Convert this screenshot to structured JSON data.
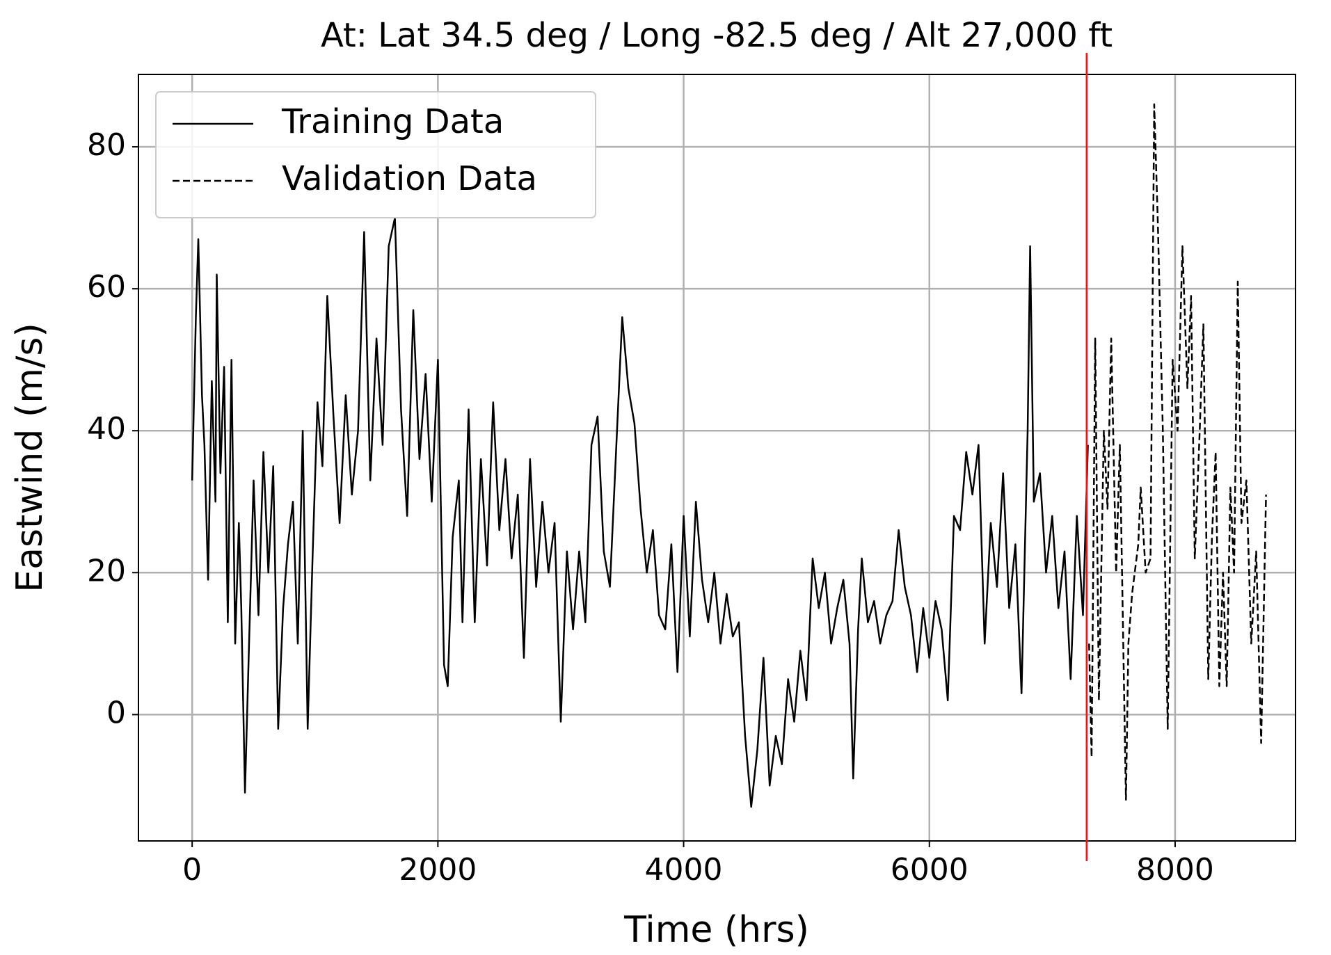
{
  "chart_data": {
    "type": "line",
    "title": "At: Lat 34.5 deg / Long -82.5 deg / Alt 27,000 ft",
    "xlabel": "Time (hrs)",
    "ylabel": "Eastwind (m/s)",
    "xlim": [
      -437,
      8980
    ],
    "ylim": [
      -17.8,
      90.2
    ],
    "xticks": [
      0,
      2000,
      4000,
      6000,
      8000
    ],
    "yticks": [
      0,
      20,
      40,
      60,
      80
    ],
    "grid": true,
    "legend": "upper left",
    "vline": {
      "x": 7280,
      "color": "#e8161b"
    },
    "series": [
      {
        "name": "Training Data",
        "color": "#000000",
        "linestyle": "solid",
        "x": [
          0,
          30,
          50,
          80,
          100,
          130,
          160,
          190,
          200,
          230,
          260,
          290,
          320,
          350,
          380,
          400,
          430,
          460,
          500,
          540,
          580,
          620,
          660,
          700,
          740,
          780,
          820,
          860,
          900,
          940,
          980,
          1020,
          1060,
          1100,
          1150,
          1200,
          1250,
          1300,
          1350,
          1400,
          1450,
          1500,
          1550,
          1600,
          1650,
          1700,
          1750,
          1800,
          1850,
          1900,
          1950,
          2000,
          2050,
          2080,
          2120,
          2170,
          2200,
          2250,
          2300,
          2350,
          2400,
          2450,
          2500,
          2550,
          2600,
          2650,
          2700,
          2750,
          2800,
          2850,
          2900,
          2950,
          3000,
          3050,
          3100,
          3150,
          3200,
          3250,
          3300,
          3350,
          3400,
          3450,
          3500,
          3550,
          3600,
          3650,
          3700,
          3750,
          3800,
          3850,
          3900,
          3950,
          4000,
          4050,
          4100,
          4150,
          4200,
          4250,
          4300,
          4350,
          4400,
          4450,
          4500,
          4550,
          4600,
          4650,
          4700,
          4750,
          4800,
          4850,
          4900,
          4950,
          5000,
          5050,
          5100,
          5150,
          5200,
          5250,
          5300,
          5350,
          5380,
          5420,
          5450,
          5500,
          5550,
          5600,
          5650,
          5700,
          5750,
          5800,
          5850,
          5900,
          5950,
          6000,
          6050,
          6100,
          6150,
          6200,
          6250,
          6300,
          6350,
          6400,
          6450,
          6500,
          6550,
          6600,
          6650,
          6700,
          6750,
          6800,
          6820,
          6850,
          6900,
          6950,
          7000,
          7050,
          7100,
          7150,
          7200,
          7250,
          7290
        ],
        "values": [
          33,
          56,
          67,
          45,
          38,
          19,
          47,
          30,
          62,
          34,
          49,
          13,
          50,
          10,
          27,
          15,
          -11,
          8,
          33,
          14,
          37,
          20,
          35,
          -2,
          15,
          24,
          30,
          10,
          40,
          -2,
          22,
          44,
          35,
          59,
          42,
          27,
          45,
          31,
          40,
          68,
          33,
          53,
          38,
          66,
          70,
          43,
          28,
          57,
          36,
          48,
          30,
          50,
          7,
          4,
          25,
          33,
          13,
          43,
          13,
          36,
          21,
          44,
          26,
          36,
          22,
          31,
          8,
          36,
          18,
          30,
          20,
          27,
          -1,
          23,
          12,
          23,
          13,
          38,
          42,
          23,
          18,
          37,
          56,
          46,
          41,
          29,
          20,
          26,
          14,
          12,
          24,
          6,
          28,
          11,
          30,
          19,
          13,
          20,
          10,
          17,
          11,
          13,
          -3,
          -13,
          -5,
          8,
          -10,
          -3,
          -7,
          5,
          -1,
          9,
          2,
          22,
          15,
          20,
          10,
          15,
          19,
          10,
          -9,
          12,
          22,
          13,
          16,
          10,
          14,
          16,
          26,
          18,
          14,
          6,
          15,
          8,
          16,
          12,
          2,
          28,
          26,
          37,
          31,
          38,
          10,
          27,
          18,
          34,
          15,
          24,
          3,
          40,
          66,
          30,
          34,
          20,
          28,
          15,
          23,
          5,
          28,
          14,
          38
        ]
      },
      {
        "name": "Validation Data",
        "color": "#000000",
        "linestyle": "dashed",
        "x": [
          7300,
          7320,
          7350,
          7380,
          7420,
          7450,
          7480,
          7520,
          7550,
          7600,
          7620,
          7650,
          7700,
          7720,
          7760,
          7800,
          7830,
          7860,
          7900,
          7940,
          7980,
          8020,
          8060,
          8100,
          8130,
          8160,
          8200,
          8230,
          8270,
          8300,
          8330,
          8360,
          8390,
          8420,
          8450,
          8480,
          8510,
          8540,
          8580,
          8620,
          8660,
          8700,
          8740
        ],
        "values": [
          10,
          -6,
          53,
          2,
          40,
          29,
          53,
          20,
          38,
          -12,
          10,
          17,
          24,
          32,
          20,
          22,
          86,
          69,
          40,
          -2,
          50,
          40,
          66,
          46,
          59,
          22,
          40,
          55,
          5,
          25,
          37,
          4,
          20,
          4,
          32,
          20,
          61,
          27,
          33,
          10,
          23,
          -4,
          31
        ]
      }
    ]
  }
}
